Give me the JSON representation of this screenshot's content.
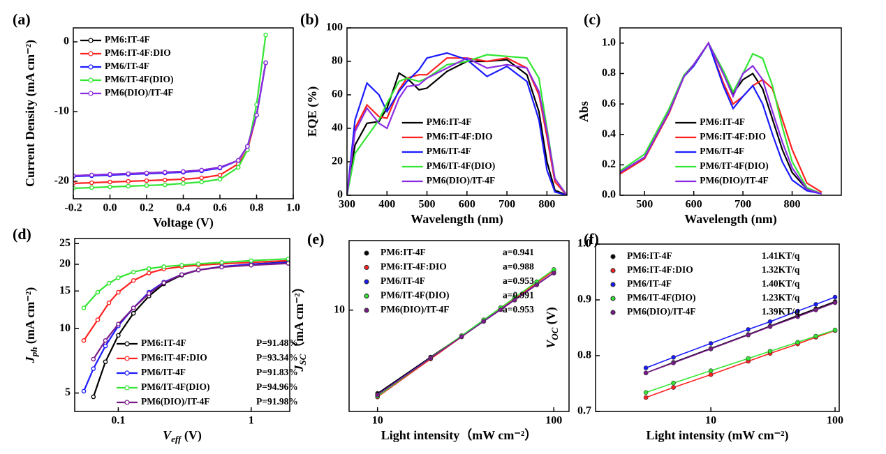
{
  "chart_data": [
    {
      "type": "line",
      "panel_label": "(a)",
      "xlabel": "Voltage (V)",
      "ylabel": "Current Density (mA cm⁻²)",
      "xlim": [
        -0.2,
        1.0
      ],
      "ylim": [
        -22.5,
        2
      ],
      "xticks": [
        -0.2,
        {
          "value": 0,
          "label": "0.0"
        },
        0.2,
        0.4,
        0.6,
        0.8,
        {
          "value": 1,
          "label": "1.0"
        }
      ],
      "yticks": [
        -20,
        -10,
        0
      ],
      "markers": true,
      "legend": "upper left",
      "x": [
        -0.2,
        -0.1,
        0,
        0.1,
        0.2,
        0.3,
        0.4,
        0.5,
        0.6,
        0.7,
        0.75,
        0.8,
        0.85
      ],
      "series": [
        {
          "name": "PM6:IT-4F",
          "color": "#000000",
          "values": [
            -19.2,
            -19.1,
            -19.0,
            -18.9,
            -18.8,
            -18.7,
            -18.6,
            -18.4,
            -18.0,
            -17.0,
            -15.0,
            -10.5,
            -3.0
          ]
        },
        {
          "name": "PM6:IT-4F:DIO",
          "color": "#ff2020",
          "values": [
            -20.3,
            -20.2,
            -20.1,
            -20.0,
            -19.9,
            -19.8,
            -19.7,
            -19.5,
            -19.1,
            -17.5,
            -15.5,
            -10.5,
            -3.0
          ]
        },
        {
          "name": "PM6/IT-4F",
          "color": "#1a1aff",
          "values": [
            -19.3,
            -19.2,
            -19.1,
            -19.0,
            -18.9,
            -18.8,
            -18.7,
            -18.5,
            -18.1,
            -17.0,
            -15.0,
            -10.5,
            -3.0
          ]
        },
        {
          "name": "PM6/IT-4F(DIO)",
          "color": "#33e633",
          "values": [
            -21.0,
            -20.9,
            -20.8,
            -20.7,
            -20.6,
            -20.5,
            -20.3,
            -20.1,
            -19.7,
            -18.0,
            -15.5,
            -9.0,
            1.0
          ]
        },
        {
          "name": "PM6(DIO)/IT-4F",
          "color": "#8b2be2",
          "values": [
            -19.2,
            -19.1,
            -19.0,
            -18.9,
            -18.8,
            -18.7,
            -18.6,
            -18.4,
            -18.0,
            -17.0,
            -15.0,
            -10.5,
            -3.0
          ]
        }
      ]
    },
    {
      "type": "line",
      "panel_label": "(b)",
      "xlabel": "Wavelength (nm)",
      "ylabel": "EQE (%)",
      "xlim": [
        300,
        850
      ],
      "ylim": [
        0,
        100
      ],
      "xticks": [
        300,
        400,
        500,
        600,
        700,
        800
      ],
      "yticks": [
        0,
        20,
        40,
        60,
        80,
        100
      ],
      "markers": false,
      "legend": "lower center",
      "x": [
        300,
        320,
        350,
        380,
        400,
        430,
        450,
        480,
        500,
        550,
        600,
        650,
        700,
        750,
        780,
        800,
        820,
        850
      ],
      "series": [
        {
          "name": "PM6:IT-4F",
          "color": "#000000",
          "values": [
            0,
            30,
            43,
            44,
            52,
            73,
            70,
            63,
            64,
            74,
            80,
            80,
            81,
            72,
            50,
            20,
            3,
            0
          ]
        },
        {
          "name": "PM6:IT-4F:DIO",
          "color": "#ff2020",
          "values": [
            0,
            40,
            54,
            47,
            46,
            63,
            70,
            72,
            72,
            82,
            82,
            80,
            82,
            76,
            60,
            35,
            8,
            0
          ]
        },
        {
          "name": "PM6/IT-4F",
          "color": "#1a1aff",
          "values": [
            0,
            45,
            67,
            60,
            50,
            62,
            68,
            75,
            82,
            85,
            81,
            71,
            77,
            68,
            45,
            15,
            2,
            0
          ]
        },
        {
          "name": "PM6/IT-4F(DIO)",
          "color": "#33e633",
          "values": [
            0,
            25,
            35,
            45,
            55,
            68,
            70,
            68,
            70,
            78,
            80,
            84,
            83,
            82,
            70,
            40,
            10,
            0
          ]
        },
        {
          "name": "PM6(DIO)/IT-4F",
          "color": "#8b2be2",
          "values": [
            0,
            38,
            52,
            43,
            40,
            58,
            65,
            66,
            70,
            76,
            82,
            76,
            78,
            76,
            62,
            38,
            10,
            0
          ]
        }
      ]
    },
    {
      "type": "line",
      "panel_label": "(c)",
      "xlabel": "Wavelength (nm)",
      "ylabel": "Abs",
      "xlim": [
        450,
        900
      ],
      "ylim": [
        0,
        1.1
      ],
      "xticks": [
        500,
        600,
        700,
        800
      ],
      "yticks": [
        {
          "value": 0,
          "label": "0.0"
        },
        0.2,
        0.4,
        0.6,
        0.8,
        {
          "value": 1,
          "label": "1.0"
        }
      ],
      "markers": false,
      "legend": "lower center",
      "x": [
        450,
        500,
        550,
        580,
        600,
        630,
        660,
        680,
        700,
        720,
        740,
        760,
        780,
        800,
        830,
        860
      ],
      "series": [
        {
          "name": "PM6:IT-4F",
          "color": "#000000",
          "values": [
            0.15,
            0.25,
            0.55,
            0.78,
            0.85,
            1.0,
            0.8,
            0.67,
            0.76,
            0.8,
            0.7,
            0.5,
            0.3,
            0.15,
            0.04,
            0.01
          ]
        },
        {
          "name": "PM6:IT-4F:DIO",
          "color": "#ff2020",
          "values": [
            0.14,
            0.24,
            0.54,
            0.78,
            0.86,
            1.0,
            0.74,
            0.6,
            0.65,
            0.72,
            0.76,
            0.7,
            0.5,
            0.3,
            0.08,
            0.02
          ]
        },
        {
          "name": "PM6/IT-4F",
          "color": "#1a1aff",
          "values": [
            0.15,
            0.25,
            0.55,
            0.78,
            0.85,
            1.0,
            0.72,
            0.57,
            0.65,
            0.72,
            0.6,
            0.4,
            0.22,
            0.1,
            0.03,
            0.01
          ]
        },
        {
          "name": "PM6/IT-4F(DIO)",
          "color": "#33e633",
          "values": [
            0.16,
            0.27,
            0.57,
            0.79,
            0.86,
            1.0,
            0.82,
            0.68,
            0.8,
            0.93,
            0.9,
            0.72,
            0.45,
            0.22,
            0.05,
            0.01
          ]
        },
        {
          "name": "PM6(DIO)/IT-4F",
          "color": "#8b2be2",
          "values": [
            0.15,
            0.25,
            0.55,
            0.78,
            0.86,
            1.0,
            0.8,
            0.65,
            0.8,
            0.85,
            0.76,
            0.55,
            0.35,
            0.18,
            0.04,
            0.01
          ]
        }
      ]
    },
    {
      "type": "line",
      "panel_label": "(d)",
      "xlabel": [
        "V",
        "eff",
        " (V)"
      ],
      "ylabel": [
        "J",
        "ph",
        " (mA cm⁻²)"
      ],
      "xscale": "log",
      "yscale": "log",
      "xlim": [
        0.047,
        1.95
      ],
      "ylim": [
        4.1,
        26.4
      ],
      "xticks": [
        0.1,
        1
      ],
      "yticks": [
        5,
        10,
        15,
        20,
        25
      ],
      "markers": true,
      "legend": "lower right",
      "series": [
        {
          "name": "PM6:IT-4F",
          "legend_note": "P=91.48%",
          "color": "#000000",
          "x": [
            0.065,
            0.08,
            0.1,
            0.13,
            0.17,
            0.22,
            0.3,
            0.4,
            0.6,
            1,
            1.9
          ],
          "values": [
            4.8,
            7,
            9.3,
            11.8,
            14.2,
            16.2,
            17.8,
            18.8,
            19.5,
            20,
            20.5
          ]
        },
        {
          "name": "PM6:IT-4F:DIO",
          "legend_note": "P=93.34%",
          "color": "#ff2020",
          "x": [
            0.055,
            0.07,
            0.085,
            0.1,
            0.13,
            0.17,
            0.22,
            0.3,
            0.4,
            0.6,
            1,
            1.9
          ],
          "values": [
            8.8,
            11,
            13.2,
            14.8,
            16.8,
            18.2,
            19,
            19.5,
            19.8,
            20.1,
            20.4,
            20.8
          ]
        },
        {
          "name": "PM6/IT-4F",
          "legend_note": "P=91.83%",
          "color": "#1a1aff",
          "x": [
            0.055,
            0.065,
            0.08,
            0.1,
            0.13,
            0.17,
            0.22,
            0.3,
            0.4,
            0.6,
            1,
            1.9
          ],
          "values": [
            5.1,
            6.5,
            8.3,
            10.3,
            12.5,
            14.8,
            16.5,
            17.9,
            18.8,
            19.5,
            20,
            20.4
          ]
        },
        {
          "name": "PM6/IT-4F(DIO)",
          "legend_note": "P=94.96%",
          "color": "#33e633",
          "x": [
            0.055,
            0.07,
            0.085,
            0.1,
            0.13,
            0.17,
            0.22,
            0.3,
            0.4,
            0.6,
            1,
            1.9
          ],
          "values": [
            12.5,
            14.8,
            16.3,
            17.3,
            18.4,
            19.1,
            19.5,
            19.8,
            20.1,
            20.4,
            20.8,
            21.2
          ]
        },
        {
          "name": "PM6(DIO)/IT-4F",
          "legend_note": "P=91.98%",
          "color": "#7a1a8a",
          "x": [
            0.065,
            0.08,
            0.1,
            0.13,
            0.17,
            0.22,
            0.3,
            0.4,
            0.6,
            1,
            1.9
          ],
          "values": [
            7.2,
            8.8,
            10.5,
            12.5,
            14.6,
            16.4,
            17.9,
            18.8,
            19.4,
            19.8,
            20.2
          ]
        }
      ]
    },
    {
      "type": "scatter",
      "panel_label": "(e)",
      "xlabel": "Light intensity（mW cm⁻²）",
      "ylabel": [
        "J",
        "SC",
        "（mA cm⁻²）"
      ],
      "xscale": "log",
      "yscale": "log",
      "xlim": [
        6.9,
        122
      ],
      "ylim": [
        1.61,
        35
      ],
      "xticks": [
        10,
        100
      ],
      "yticks": [
        10
      ],
      "fit_line": true,
      "legend": "upper left",
      "x": [
        10,
        20,
        30,
        40,
        50,
        60,
        80,
        100
      ],
      "series": [
        {
          "name": "PM6:IT-4F",
          "legend_note": "a=0.941",
          "color": "#000000",
          "values": [
            2.23,
            4.29,
            6.28,
            8.24,
            10.16,
            12.05,
            15.81,
            19.5
          ]
        },
        {
          "name": "PM6:IT-4F:DIO",
          "legend_note": "a=0.988",
          "color": "#ff2020",
          "values": [
            2.09,
            4.14,
            6.17,
            8.21,
            10.23,
            12.25,
            16.29,
            20.3
          ]
        },
        {
          "name": "PM6/IT-4F",
          "legend_note": "a=0.953",
          "color": "#1a1aff",
          "values": [
            2.18,
            4.23,
            6.22,
            8.19,
            10.12,
            12.04,
            15.84,
            19.6
          ]
        },
        {
          "name": "PM6/IT-4F(DIO)",
          "legend_note": "a=0.991",
          "color": "#33e633",
          "values": [
            2.12,
            4.22,
            6.31,
            8.39,
            10.46,
            12.54,
            16.68,
            20.8
          ]
        },
        {
          "name": "PM6(DIO)/IT-4F",
          "legend_note": "a=0.953",
          "color": "#7a1a8a",
          "values": [
            2.17,
            4.21,
            6.19,
            8.15,
            10.07,
            11.97,
            15.76,
            19.5
          ]
        }
      ]
    },
    {
      "type": "scatter",
      "panel_label": "(f)",
      "xlabel": "Light intensity (mW cm⁻²)",
      "ylabel": [
        "V",
        "OC",
        " (V)"
      ],
      "xscale": "log",
      "xlim": [
        1.18,
        108
      ],
      "ylim": [
        0.7,
        1.0
      ],
      "xticks": [
        10,
        100
      ],
      "yticks": [
        0.7,
        0.8,
        0.9,
        {
          "value": 1,
          "label": "1.0"
        }
      ],
      "fit_line": true,
      "legend": "upper left",
      "x": [
        3,
        5,
        10,
        20,
        30,
        50,
        70,
        100
      ],
      "series": [
        {
          "name": "PM6:IT-4F",
          "legend_note": "1.41KT/q",
          "color": "#000000",
          "values": [
            0.769,
            0.788,
            0.813,
            0.838,
            0.853,
            0.872,
            0.884,
            0.897
          ]
        },
        {
          "name": "PM6:IT-4F:DIO",
          "legend_note": "1.32KT/q",
          "color": "#ff2020",
          "values": [
            0.725,
            0.743,
            0.766,
            0.79,
            0.804,
            0.821,
            0.833,
            0.845
          ]
        },
        {
          "name": "PM6/IT-4F",
          "legend_note": "1.40KT/q",
          "color": "#1a1aff",
          "values": [
            0.778,
            0.797,
            0.822,
            0.847,
            0.861,
            0.88,
            0.892,
            0.905
          ]
        },
        {
          "name": "PM6/IT-4F(DIO)",
          "legend_note": "1.23KT/q",
          "color": "#33e633",
          "values": [
            0.734,
            0.751,
            0.773,
            0.795,
            0.808,
            0.824,
            0.835,
            0.846
          ]
        },
        {
          "name": "PM6(DIO)/IT-4F",
          "legend_note": "1.39KT/q",
          "color": "#7a1a8a",
          "values": [
            0.769,
            0.787,
            0.812,
            0.837,
            0.852,
            0.87,
            0.882,
            0.895
          ]
        }
      ]
    }
  ]
}
